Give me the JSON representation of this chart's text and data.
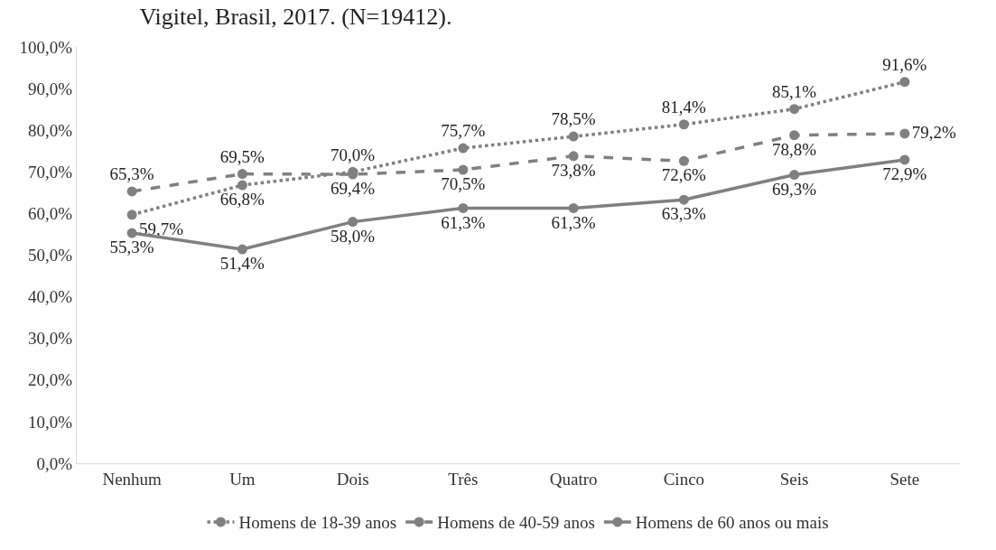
{
  "chart_data": {
    "type": "line",
    "title": "Vigitel, Brasil, 2017. (N=19412).",
    "categories": [
      "Nenhum",
      "Um",
      "Dois",
      "Três",
      "Quatro",
      "Cinco",
      "Seis",
      "Sete"
    ],
    "series": [
      {
        "name": "Homens de 18-39 anos",
        "color": "#808080",
        "line_style": "dotted",
        "values": [
          59.7,
          66.8,
          70.0,
          75.7,
          78.5,
          81.4,
          85.1,
          91.6
        ],
        "value_labels": [
          "59,7%",
          "66,8%",
          "70,0%",
          "75,7%",
          "78,5%",
          "81,4%",
          "85,1%",
          "91,6%"
        ]
      },
      {
        "name": "Homens de 40-59 anos",
        "color": "#808080",
        "line_style": "dashed",
        "values": [
          65.3,
          69.5,
          69.4,
          70.5,
          73.8,
          72.6,
          78.8,
          79.2
        ],
        "value_labels": [
          "65,3%",
          "69,5%",
          "69,4%",
          "70,5%",
          "73,8%",
          "72,6%",
          "78,8%",
          "79,2%"
        ]
      },
      {
        "name": "Homens de 60 anos ou mais",
        "color": "#808080",
        "line_style": "solid",
        "values": [
          55.3,
          51.4,
          58.0,
          61.3,
          61.3,
          63.3,
          69.3,
          72.9
        ],
        "value_labels": [
          "55,3%",
          "51,4%",
          "58,0%",
          "61,3%",
          "61,3%",
          "63,3%",
          "69,3%",
          "72,9%"
        ]
      }
    ],
    "ylim": [
      0,
      100
    ],
    "yticks": [
      {
        "value": 0,
        "label": "0,0%"
      },
      {
        "value": 10,
        "label": "10,0%"
      },
      {
        "value": 20,
        "label": "20,0%"
      },
      {
        "value": 30,
        "label": "30,0%"
      },
      {
        "value": 40,
        "label": "40,0%"
      },
      {
        "value": 50,
        "label": "50,0%"
      },
      {
        "value": 60,
        "label": "60,0%"
      },
      {
        "value": 70,
        "label": "70,0%"
      },
      {
        "value": 80,
        "label": "80,0%"
      },
      {
        "value": 90,
        "label": "90,0%"
      },
      {
        "value": 100,
        "label": "100,0%"
      }
    ],
    "grid": false,
    "legend": "bottom",
    "marker": "circle"
  }
}
